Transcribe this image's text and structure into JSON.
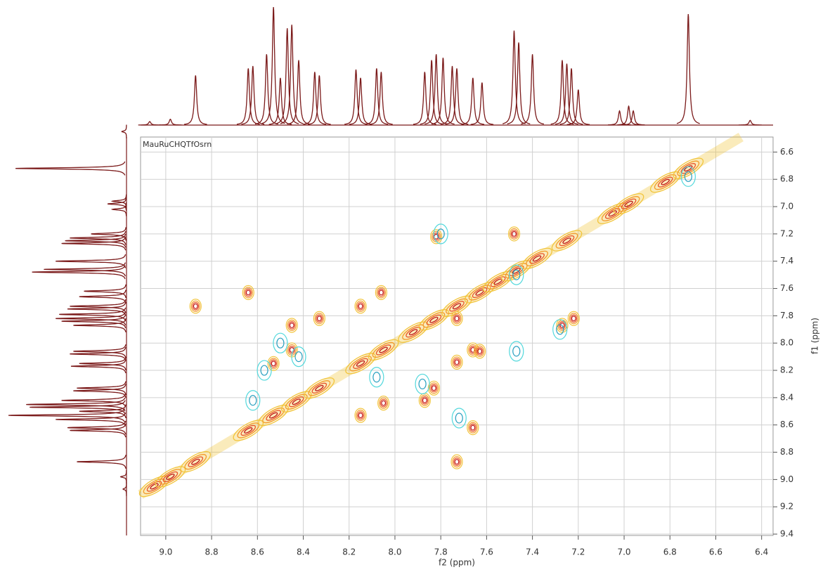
{
  "chart_data": {
    "type": "contour",
    "title": "MauRuCHQTfOsrn",
    "xlabel": "f2 (ppm)",
    "ylabel": "f1 (ppm)",
    "xlim": [
      9.11,
      6.35
    ],
    "ylim": [
      6.49,
      9.41
    ],
    "xticks": [
      {
        "value": 9,
        "label": "9.0"
      },
      8.8,
      8.6,
      8.4,
      8.2,
      {
        "value": 8,
        "label": "8.0"
      },
      7.8,
      7.6,
      7.4,
      7.2,
      {
        "value": 7,
        "label": "7.0"
      },
      6.8,
      6.6,
      6.4
    ],
    "yticks": [
      6.6,
      6.8,
      {
        "value": 7,
        "label": "7.0"
      },
      7.2,
      7.4,
      7.6,
      7.8,
      {
        "value": 8,
        "label": "8.0"
      },
      8.2,
      8.4,
      8.6,
      8.8,
      {
        "value": 9,
        "label": "9.0"
      },
      9.2,
      9.4
    ],
    "grid": true,
    "trace_color": "#7b1a1a",
    "positive_colors": [
      "#f2c53d",
      "#f39a2a",
      "#e8552a",
      "#c01818"
    ],
    "negative_colors": [
      "#52d8dc",
      "#2aa0c0"
    ],
    "projection": {
      "x": [
        9.07,
        8.98,
        8.87,
        8.64,
        8.62,
        8.56,
        8.53,
        8.5,
        8.47,
        8.45,
        8.42,
        8.35,
        8.33,
        8.17,
        8.15,
        8.08,
        8.06,
        7.87,
        7.84,
        7.82,
        7.79,
        7.75,
        7.73,
        7.66,
        7.62,
        7.48,
        7.46,
        7.4,
        7.27,
        7.25,
        7.23,
        7.2,
        7.02,
        6.98,
        6.96,
        6.72,
        6.45
      ],
      "values": [
        3,
        5,
        42,
        48,
        50,
        60,
        100,
        40,
        82,
        85,
        55,
        45,
        42,
        47,
        40,
        48,
        45,
        45,
        55,
        60,
        57,
        50,
        48,
        40,
        36,
        80,
        70,
        60,
        55,
        52,
        48,
        30,
        12,
        16,
        12,
        94,
        4
      ]
    },
    "diagonal": [
      9.05,
      8.98,
      8.87,
      8.64,
      8.53,
      8.43,
      8.33,
      8.15,
      8.05,
      7.92,
      7.83,
      7.73,
      7.63,
      7.55,
      7.47,
      7.38,
      7.25,
      7.05,
      6.98,
      6.82,
      6.72
    ],
    "positive": {
      "x": [
        8.87,
        8.64,
        8.53,
        8.45,
        8.45,
        8.33,
        8.15,
        8.06,
        7.87,
        7.83,
        7.73,
        7.66,
        7.66,
        7.73,
        7.48,
        7.22,
        7.82,
        7.63,
        8.15,
        8.05,
        7.73,
        7.27
      ],
      "y": [
        7.73,
        7.63,
        8.15,
        7.87,
        8.05,
        7.82,
        7.73,
        7.63,
        8.42,
        8.33,
        8.14,
        8.05,
        8.62,
        8.87,
        7.2,
        7.82,
        7.22,
        8.06,
        8.53,
        8.44,
        7.82,
        7.87
      ]
    },
    "negative": {
      "x": [
        8.62,
        8.5,
        7.47,
        7.28,
        6.72,
        8.57,
        8.42,
        7.8,
        7.88,
        8.08,
        7.72,
        7.47
      ],
      "y": [
        8.42,
        8.0,
        8.06,
        7.9,
        6.78,
        8.2,
        8.1,
        7.2,
        8.3,
        8.25,
        8.55,
        7.5
      ]
    }
  }
}
